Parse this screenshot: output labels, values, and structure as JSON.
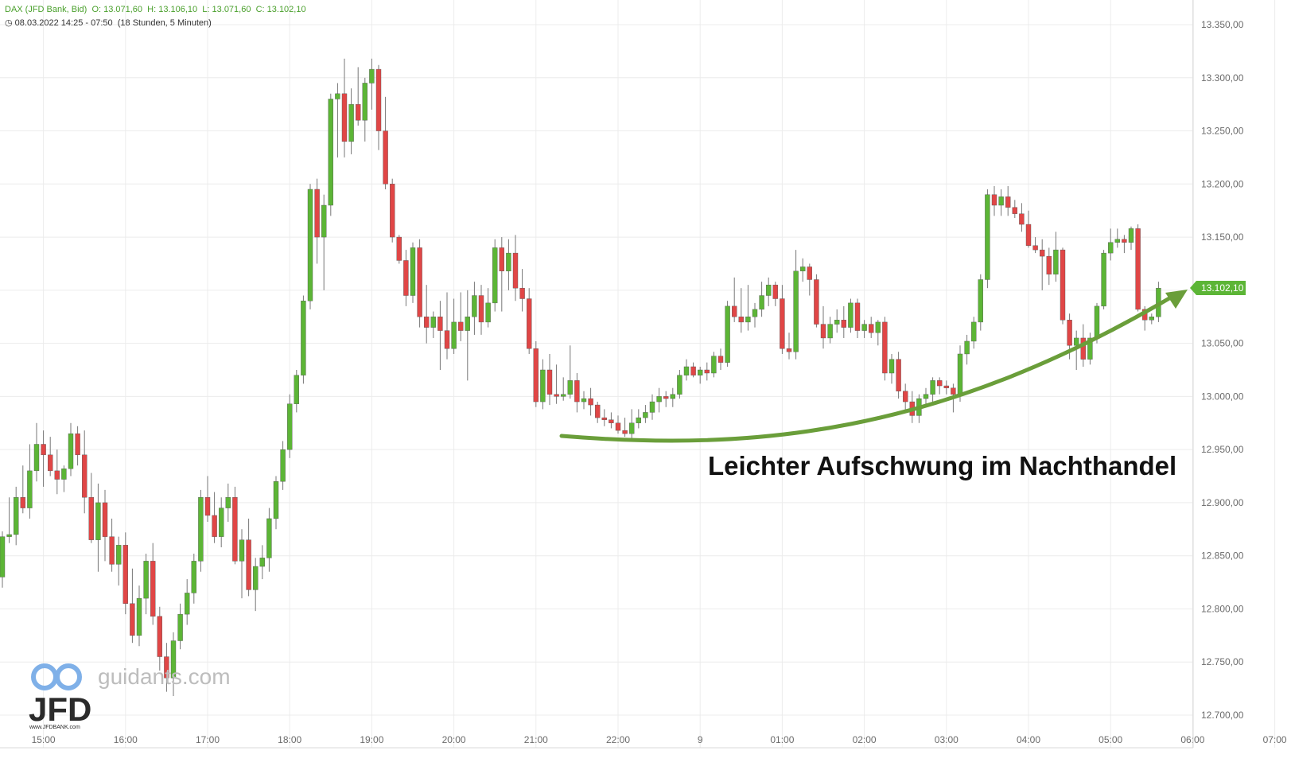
{
  "header": {
    "line1": {
      "name": "DAX (JFD Bank, Bid)",
      "open": "O: 13.071,60",
      "high": "H: 13.106,10",
      "low": "L: 13.071,60",
      "close": "C: 13.102,10"
    },
    "line2": {
      "range": "08.03.2022 14:25 - 07:50",
      "duration": "(18 Stunden, 5 Minuten)"
    }
  },
  "colors": {
    "up": "#5cb536",
    "down": "#e04646",
    "arrow": "#6a9e3a",
    "grid": "#ececec",
    "price_badge": "#5cb536"
  },
  "watermark": {
    "site": "guidants.com",
    "brand": "JFD",
    "brand_url": "www.JFDBANK.com"
  },
  "annotation": {
    "text": "Leichter Aufschwung im Nachthandel"
  },
  "price_badge": {
    "label": "13.102,10"
  },
  "chart_data": {
    "type": "candlestick",
    "x_tick_labels": [
      "15:00",
      "16:00",
      "17:00",
      "18:00",
      "19:00",
      "20:00",
      "21:00",
      "22:00",
      "9",
      "01:00",
      "02:00",
      "03:00",
      "04:00",
      "05:00",
      "06:00",
      "07:00"
    ],
    "y_ticks": [
      12700,
      12750,
      12800,
      12850,
      12900,
      12950,
      13000,
      13050,
      13100,
      13150,
      13200,
      13250,
      13300,
      13350
    ],
    "y_tick_labels": [
      "12.700,00",
      "12.750,00",
      "12.800,00",
      "12.850,00",
      "12.900,00",
      "12.950,00",
      "13.000,00",
      "13.050,00",
      "13.100,00",
      "13.150,00",
      "13.200,00",
      "13.250,00",
      "13.300,00",
      "13.350,00"
    ],
    "ylim": [
      12690,
      13370
    ],
    "candles": [
      [
        12830,
        12873,
        12820,
        12868
      ],
      [
        12868,
        12905,
        12862,
        12870
      ],
      [
        12870,
        12915,
        12860,
        12905
      ],
      [
        12905,
        12935,
        12890,
        12895
      ],
      [
        12895,
        12955,
        12885,
        12930
      ],
      [
        12930,
        12975,
        12920,
        12955
      ],
      [
        12955,
        12968,
        12915,
        12945
      ],
      [
        12945,
        12962,
        12925,
        12930
      ],
      [
        12930,
        12950,
        12908,
        12922
      ],
      [
        12922,
        12935,
        12910,
        12932
      ],
      [
        12932,
        12975,
        12925,
        12965
      ],
      [
        12965,
        12972,
        12935,
        12945
      ],
      [
        12945,
        12968,
        12890,
        12905
      ],
      [
        12905,
        12928,
        12862,
        12865
      ],
      [
        12865,
        12918,
        12835,
        12900
      ],
      [
        12900,
        12912,
        12845,
        12868
      ],
      [
        12868,
        12885,
        12835,
        12842
      ],
      [
        12842,
        12868,
        12822,
        12860
      ],
      [
        12860,
        12872,
        12795,
        12805
      ],
      [
        12805,
        12838,
        12768,
        12775
      ],
      [
        12775,
        12822,
        12765,
        12810
      ],
      [
        12810,
        12852,
        12795,
        12845
      ],
      [
        12845,
        12862,
        12785,
        12793
      ],
      [
        12793,
        12802,
        12742,
        12755
      ],
      [
        12755,
        12768,
        12722,
        12735
      ],
      [
        12735,
        12778,
        12718,
        12770
      ],
      [
        12770,
        12805,
        12762,
        12795
      ],
      [
        12795,
        12828,
        12785,
        12815
      ],
      [
        12815,
        12852,
        12805,
        12845
      ],
      [
        12845,
        12912,
        12835,
        12905
      ],
      [
        12905,
        12925,
        12882,
        12888
      ],
      [
        12888,
        12910,
        12862,
        12868
      ],
      [
        12868,
        12905,
        12858,
        12895
      ],
      [
        12895,
        12918,
        12882,
        12905
      ],
      [
        12905,
        12915,
        12842,
        12845
      ],
      [
        12845,
        12875,
        12810,
        12865
      ],
      [
        12865,
        12885,
        12812,
        12818
      ],
      [
        12818,
        12848,
        12798,
        12840
      ],
      [
        12840,
        12860,
        12828,
        12848
      ],
      [
        12848,
        12895,
        12835,
        12885
      ],
      [
        12885,
        12925,
        12875,
        12920
      ],
      [
        12920,
        12958,
        12912,
        12950
      ],
      [
        12950,
        13002,
        12942,
        12993
      ],
      [
        12993,
        13025,
        12985,
        13020
      ],
      [
        13020,
        13095,
        13012,
        13090
      ],
      [
        13090,
        13200,
        13082,
        13195
      ],
      [
        13195,
        13205,
        13125,
        13150
      ],
      [
        13150,
        13190,
        13100,
        13180
      ],
      [
        13180,
        13285,
        13170,
        13280
      ],
      [
        13280,
        13295,
        13225,
        13285
      ],
      [
        13285,
        13318,
        13225,
        13240
      ],
      [
        13240,
        13290,
        13228,
        13275
      ],
      [
        13275,
        13310,
        13255,
        13260
      ],
      [
        13260,
        13300,
        13240,
        13295
      ],
      [
        13295,
        13318,
        13270,
        13308
      ],
      [
        13308,
        13312,
        13232,
        13250
      ],
      [
        13250,
        13282,
        13195,
        13200
      ],
      [
        13200,
        13205,
        13145,
        13150
      ],
      [
        13150,
        13152,
        13125,
        13128
      ],
      [
        13128,
        13138,
        13085,
        13095
      ],
      [
        13095,
        13145,
        13088,
        13140
      ],
      [
        13140,
        13148,
        13065,
        13075
      ],
      [
        13075,
        13105,
        13050,
        13065
      ],
      [
        13065,
        13080,
        13055,
        13075
      ],
      [
        13075,
        13090,
        13025,
        13062
      ],
      [
        13062,
        13098,
        13035,
        13045
      ],
      [
        13045,
        13092,
        13040,
        13070
      ],
      [
        13070,
        13098,
        13052,
        13062
      ],
      [
        13062,
        13100,
        13015,
        13075
      ],
      [
        13075,
        13108,
        13058,
        13095
      ],
      [
        13095,
        13105,
        13058,
        13070
      ],
      [
        13070,
        13102,
        13065,
        13088
      ],
      [
        13088,
        13148,
        13080,
        13140
      ],
      [
        13140,
        13150,
        13080,
        13118
      ],
      [
        13118,
        13148,
        13100,
        13135
      ],
      [
        13135,
        13152,
        13090,
        13102
      ],
      [
        13102,
        13120,
        13080,
        13092
      ],
      [
        13092,
        13102,
        13040,
        13045
      ],
      [
        13045,
        13052,
        12990,
        12995
      ],
      [
        12995,
        13035,
        12988,
        13025
      ],
      [
        13025,
        13040,
        12992,
        13002
      ],
      [
        13002,
        13030,
        12993,
        13000
      ],
      [
        13000,
        13018,
        12996,
        13002
      ],
      [
        13002,
        13048,
        12998,
        13015
      ],
      [
        13015,
        13022,
        12985,
        12995
      ],
      [
        12995,
        13005,
        12988,
        12998
      ],
      [
        12998,
        13008,
        12982,
        12992
      ],
      [
        12992,
        12995,
        12975,
        12980
      ],
      [
        12980,
        12988,
        12972,
        12978
      ],
      [
        12978,
        12985,
        12970,
        12975
      ],
      [
        12975,
        12982,
        12965,
        12968
      ],
      [
        12968,
        12980,
        12962,
        12965
      ],
      [
        12965,
        12988,
        12960,
        12975
      ],
      [
        12975,
        12988,
        12970,
        12980
      ],
      [
        12980,
        12992,
        12975,
        12985
      ],
      [
        12985,
        13002,
        12978,
        12995
      ],
      [
        12995,
        13008,
        12985,
        13000
      ],
      [
        13000,
        13005,
        12990,
        12998
      ],
      [
        12998,
        13008,
        12990,
        13002
      ],
      [
        13002,
        13025,
        12998,
        13020
      ],
      [
        13020,
        13035,
        13015,
        13028
      ],
      [
        13028,
        13032,
        13018,
        13020
      ],
      [
        13020,
        13028,
        13012,
        13025
      ],
      [
        13025,
        13032,
        13015,
        13022
      ],
      [
        13022,
        13042,
        13018,
        13038
      ],
      [
        13038,
        13045,
        13025,
        13032
      ],
      [
        13032,
        13090,
        13028,
        13085
      ],
      [
        13085,
        13112,
        13070,
        13075
      ],
      [
        13075,
        13102,
        13060,
        13070
      ],
      [
        13070,
        13105,
        13062,
        13075
      ],
      [
        13075,
        13088,
        13065,
        13082
      ],
      [
        13082,
        13108,
        13075,
        13095
      ],
      [
        13095,
        13112,
        13085,
        13105
      ],
      [
        13105,
        13108,
        13085,
        13092
      ],
      [
        13092,
        13105,
        13040,
        13045
      ],
      [
        13045,
        13060,
        13035,
        13042
      ],
      [
        13042,
        13138,
        13035,
        13118
      ],
      [
        13118,
        13130,
        13108,
        13122
      ],
      [
        13122,
        13125,
        13095,
        13110
      ],
      [
        13110,
        13115,
        13065,
        13068
      ],
      [
        13068,
        13085,
        13045,
        13055
      ],
      [
        13055,
        13075,
        13050,
        13068
      ],
      [
        13068,
        13082,
        13060,
        13072
      ],
      [
        13072,
        13085,
        13055,
        13065
      ],
      [
        13065,
        13092,
        13060,
        13088
      ],
      [
        13088,
        13092,
        13055,
        13062
      ],
      [
        13062,
        13072,
        13055,
        13068
      ],
      [
        13068,
        13075,
        13055,
        13060
      ],
      [
        13060,
        13072,
        13048,
        13070
      ],
      [
        13070,
        13075,
        13015,
        13022
      ],
      [
        13022,
        13040,
        13012,
        13035
      ],
      [
        13035,
        13042,
        12998,
        13005
      ],
      [
        13005,
        13012,
        12985,
        12995
      ],
      [
        12995,
        13005,
        12975,
        12982
      ],
      [
        12982,
        13002,
        12975,
        12998
      ],
      [
        12998,
        13008,
        12992,
        13002
      ],
      [
        13002,
        13018,
        12995,
        13015
      ],
      [
        13015,
        13018,
        13002,
        13010
      ],
      [
        13010,
        13015,
        13002,
        13008
      ],
      [
        13008,
        13012,
        12985,
        13002
      ],
      [
        13002,
        13048,
        12995,
        13040
      ],
      [
        13040,
        13058,
        13030,
        13052
      ],
      [
        13052,
        13075,
        13045,
        13070
      ],
      [
        13070,
        13115,
        13062,
        13110
      ],
      [
        13110,
        13195,
        13102,
        13190
      ],
      [
        13190,
        13198,
        13170,
        13180
      ],
      [
        13180,
        13195,
        13170,
        13188
      ],
      [
        13188,
        13198,
        13170,
        13178
      ],
      [
        13178,
        13185,
        13168,
        13172
      ],
      [
        13172,
        13182,
        13155,
        13162
      ],
      [
        13162,
        13175,
        13140,
        13142
      ],
      [
        13142,
        13150,
        13135,
        13138
      ],
      [
        13138,
        13148,
        13100,
        13132
      ],
      [
        13132,
        13140,
        13105,
        13115
      ],
      [
        13115,
        13155,
        13108,
        13138
      ],
      [
        13138,
        13140,
        13068,
        13072
      ],
      [
        13072,
        13078,
        13035,
        13048
      ],
      [
        13048,
        13062,
        13025,
        13055
      ],
      [
        13055,
        13068,
        13028,
        13035
      ],
      [
        13035,
        13060,
        13030,
        13055
      ],
      [
        13055,
        13088,
        13050,
        13085
      ],
      [
        13085,
        13138,
        13082,
        13135
      ],
      [
        13135,
        13158,
        13128,
        13145
      ],
      [
        13145,
        13158,
        13140,
        13148
      ],
      [
        13148,
        13152,
        13135,
        13145
      ],
      [
        13145,
        13160,
        13138,
        13158
      ],
      [
        13158,
        13162,
        13080,
        13082
      ],
      [
        13082,
        13085,
        13062,
        13072
      ],
      [
        13072,
        13078,
        13068,
        13075
      ],
      [
        13075,
        13108,
        13070,
        13102
      ]
    ],
    "candle_tick_indices": [
      6,
      18,
      30,
      42,
      54,
      66,
      78,
      90,
      102,
      114,
      126,
      138,
      150,
      162,
      174,
      186
    ],
    "curve_note": "green annotation arrow (curved, pointing to last price)"
  }
}
